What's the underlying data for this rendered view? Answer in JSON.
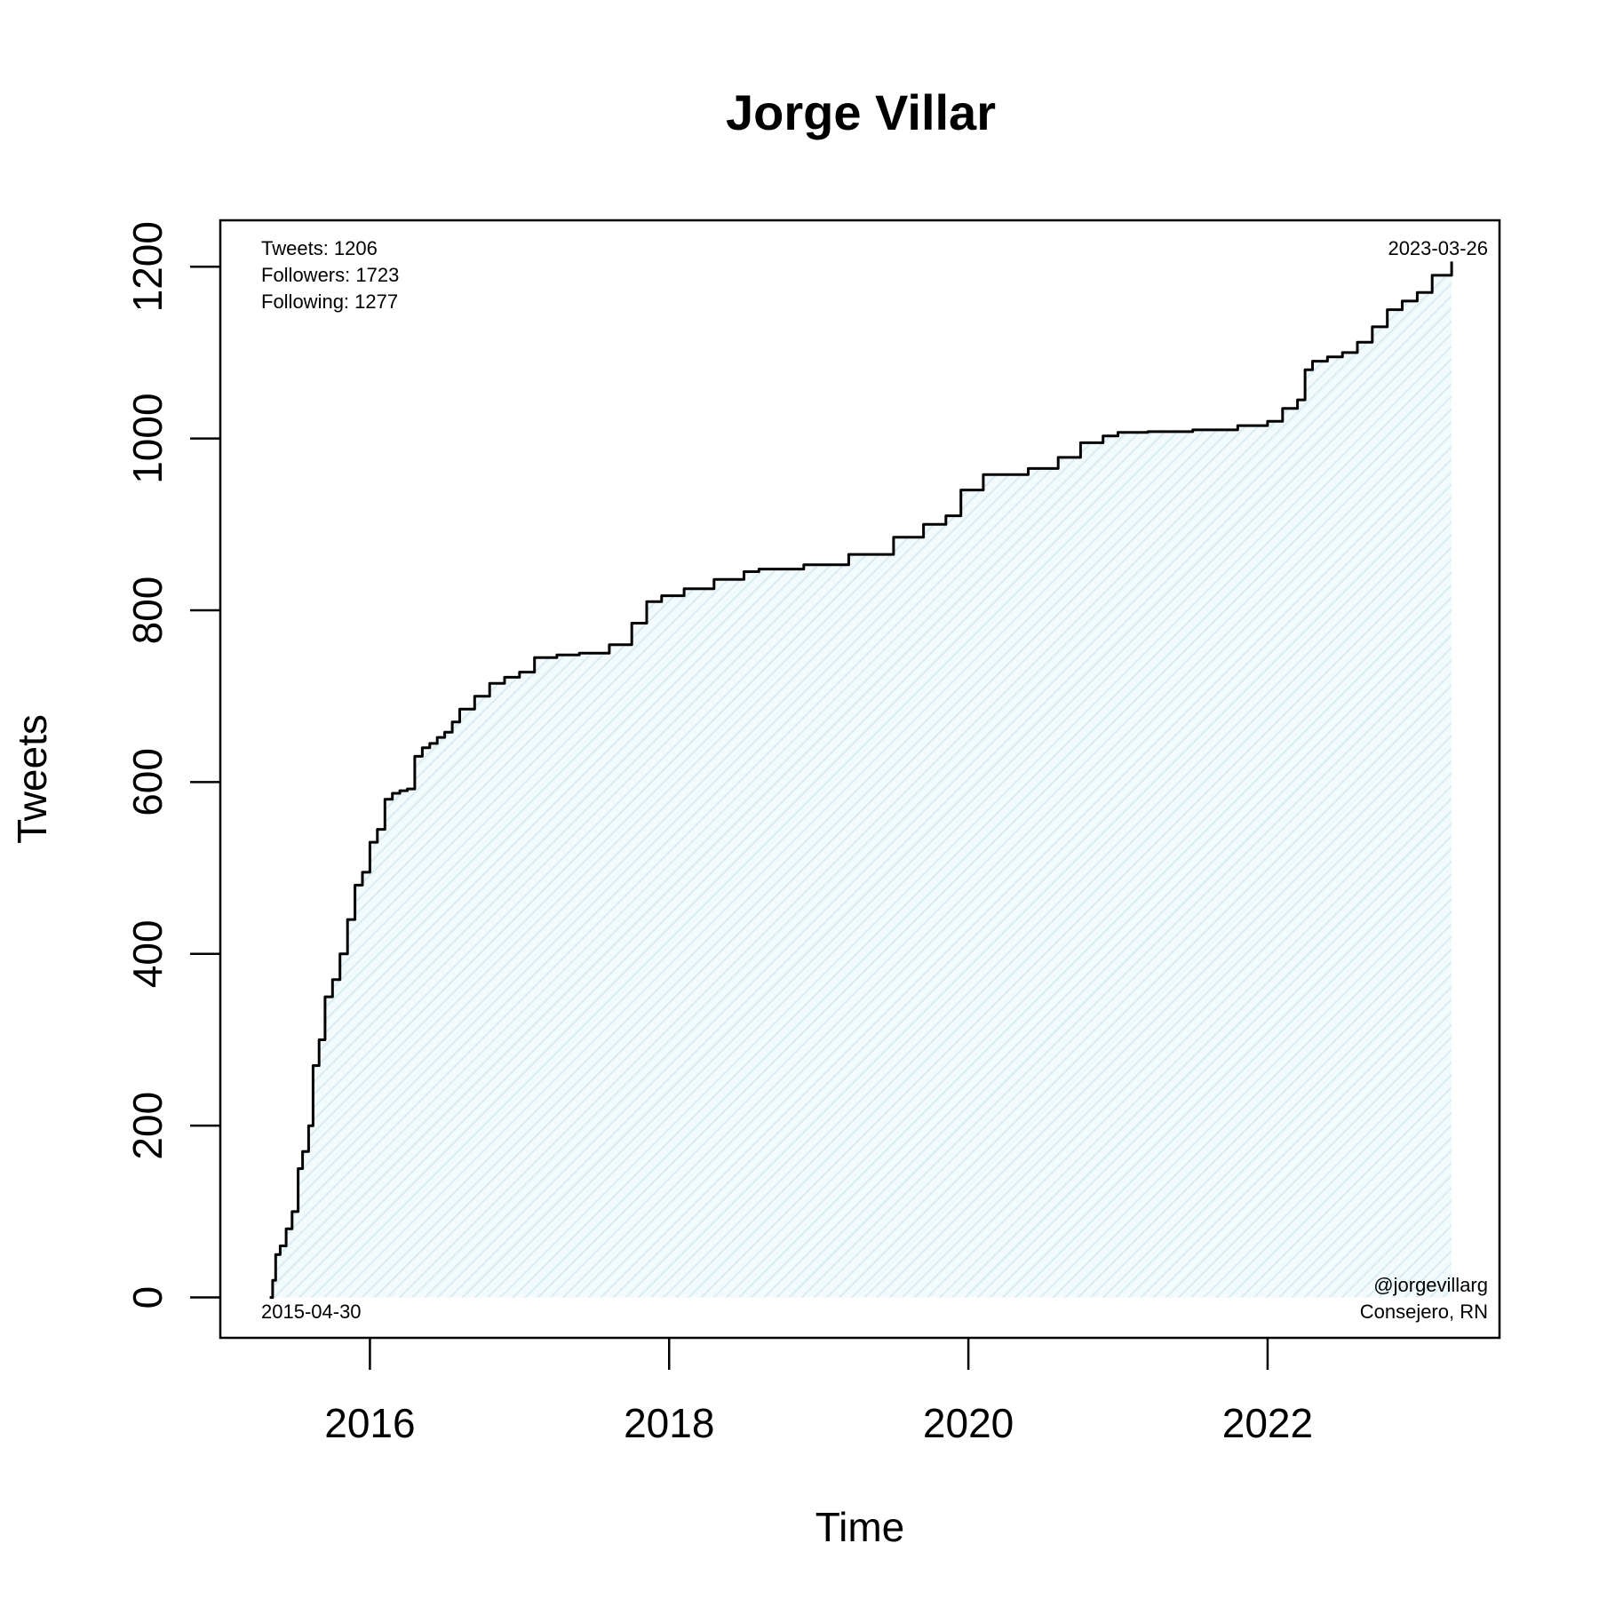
{
  "chart_data": {
    "type": "area",
    "title": "Jorge Villar",
    "xlabel": "Time",
    "ylabel": "Tweets",
    "xlim": [
      2015.0,
      2023.55
    ],
    "ylim": [
      -47,
      1254
    ],
    "x_ticks": [
      2016,
      2018,
      2020,
      2022
    ],
    "x_tick_labels": [
      "2016",
      "2018",
      "2020",
      "2022"
    ],
    "y_ticks": [
      0,
      200,
      400,
      600,
      800,
      1000,
      1200
    ],
    "y_tick_labels": [
      "0",
      "200",
      "400",
      "600",
      "800",
      "1000",
      "1200"
    ],
    "grid": false,
    "legend": "none",
    "colors": {
      "line": "#000000",
      "fill": "#d8ecf4",
      "axis": "#000000"
    },
    "series": [
      {
        "x": [
          2015.33,
          2015.35,
          2015.37,
          2015.4,
          2015.44,
          2015.48,
          2015.52,
          2015.55,
          2015.59,
          2015.62,
          2015.66,
          2015.7,
          2015.75,
          2015.8,
          2015.85,
          2015.9,
          2015.95,
          2016.0,
          2016.05,
          2016.1,
          2016.15,
          2016.2,
          2016.25,
          2016.3,
          2016.35,
          2016.4,
          2016.45,
          2016.5,
          2016.55,
          2016.6,
          2016.7,
          2016.8,
          2016.9,
          2017.0,
          2017.1,
          2017.25,
          2017.4,
          2017.6,
          2017.75,
          2017.85,
          2017.95,
          2018.1,
          2018.3,
          2018.5,
          2018.6,
          2018.9,
          2019.2,
          2019.5,
          2019.7,
          2019.85,
          2019.95,
          2020.1,
          2020.4,
          2020.6,
          2020.75,
          2020.9,
          2021.0,
          2021.2,
          2021.5,
          2021.8,
          2022.0,
          2022.1,
          2022.2,
          2022.25,
          2022.3,
          2022.4,
          2022.5,
          2022.6,
          2022.7,
          2022.8,
          2022.9,
          2023.0,
          2023.1,
          2023.23
        ],
        "values": [
          0,
          20,
          50,
          60,
          80,
          100,
          150,
          170,
          200,
          270,
          300,
          350,
          370,
          400,
          440,
          480,
          495,
          530,
          545,
          580,
          587,
          590,
          592,
          630,
          640,
          645,
          652,
          658,
          670,
          685,
          700,
          715,
          722,
          728,
          745,
          748,
          750,
          760,
          785,
          810,
          817,
          825,
          836,
          845,
          848,
          853,
          865,
          885,
          900,
          910,
          940,
          958,
          965,
          978,
          995,
          1003,
          1007,
          1008,
          1010,
          1015,
          1020,
          1035,
          1045,
          1080,
          1090,
          1095,
          1100,
          1112,
          1130,
          1150,
          1160,
          1170,
          1190,
          1206
        ]
      }
    ],
    "annotations": {
      "top_left": [
        "Tweets: 1206",
        "Followers: 1723",
        "Following: 1277"
      ],
      "top_right": "2023-03-26",
      "bottom_left": "2015-04-30",
      "bottom_right": [
        "@jorgevillarg",
        "Consejero, RN"
      ]
    }
  }
}
